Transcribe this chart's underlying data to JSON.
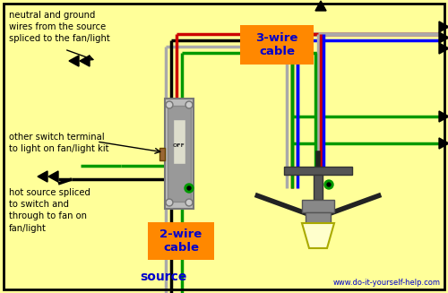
{
  "bg_color": "#ffff99",
  "border_color": "#000000",
  "website": "www.do-it-yourself-help.com",
  "source_text": "source",
  "label1": "neutral and ground\nwires from the source\nspliced to the fan/light",
  "label2": "other switch terminal\nto light on fan/light kit",
  "label3": "hot source spliced\nto switch and\nthrough to fan on\nfan/light",
  "label4": "3-wire\ncable",
  "label5": "2-wire\ncable",
  "wire_black": "#000000",
  "wire_red": "#cc0000",
  "wire_green": "#009900",
  "wire_blue": "#0000ff",
  "wire_gray": "#aaaaaa",
  "orange_box": "#ff8800",
  "blue_text": "#0000cc",
  "switch_body": "#aaaaaa",
  "switch_plate": "#cccccc",
  "fan_dark": "#555555",
  "fan_metal": "#888888"
}
